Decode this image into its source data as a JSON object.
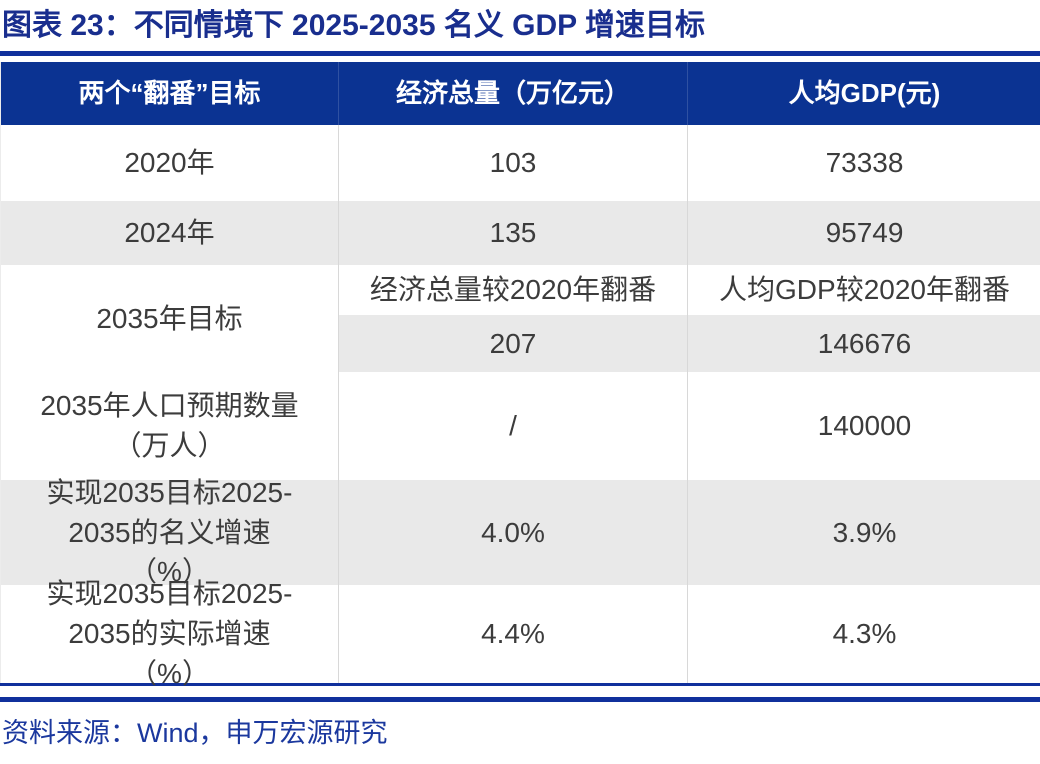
{
  "title": "图表 23：不同情境下 2025-2035 名义 GDP 增速目标",
  "colors": {
    "title_blue": "#192E8E",
    "rule_blue": "#10309C",
    "header_bg": "#0B3392",
    "header_text": "#FFFFFF",
    "shaded_row_bg": "#E9E9E9",
    "cell_text": "#3C3C3C",
    "divider_gray": "#D8D8D8",
    "source_blue": "#1B389E"
  },
  "table": {
    "headers": [
      "两个“翻番”目标",
      "经济总量（万亿元）",
      "人均GDP(元)"
    ],
    "rows": [
      {
        "label": "2020年",
        "total": "103",
        "percap": "73338"
      },
      {
        "label": "2024年",
        "total": "135",
        "percap": "95749"
      },
      {
        "label": "2035年目标",
        "sub": [
          {
            "total": "经济总量较2020年翻番",
            "percap": "人均GDP较2020年翻番"
          },
          {
            "total": "207",
            "percap": "146676"
          }
        ]
      },
      {
        "label": "2035年人口预期数量（万人）",
        "total": "/",
        "percap": "140000"
      },
      {
        "label": "实现2035目标2025-2035的名义增速（%）",
        "total": "4.0%",
        "percap": "3.9%"
      },
      {
        "label": "实现2035目标2025-2035的实际增速（%）",
        "total": "4.4%",
        "percap": "4.3%"
      }
    ]
  },
  "source": "资料来源：Wind，申万宏源研究"
}
